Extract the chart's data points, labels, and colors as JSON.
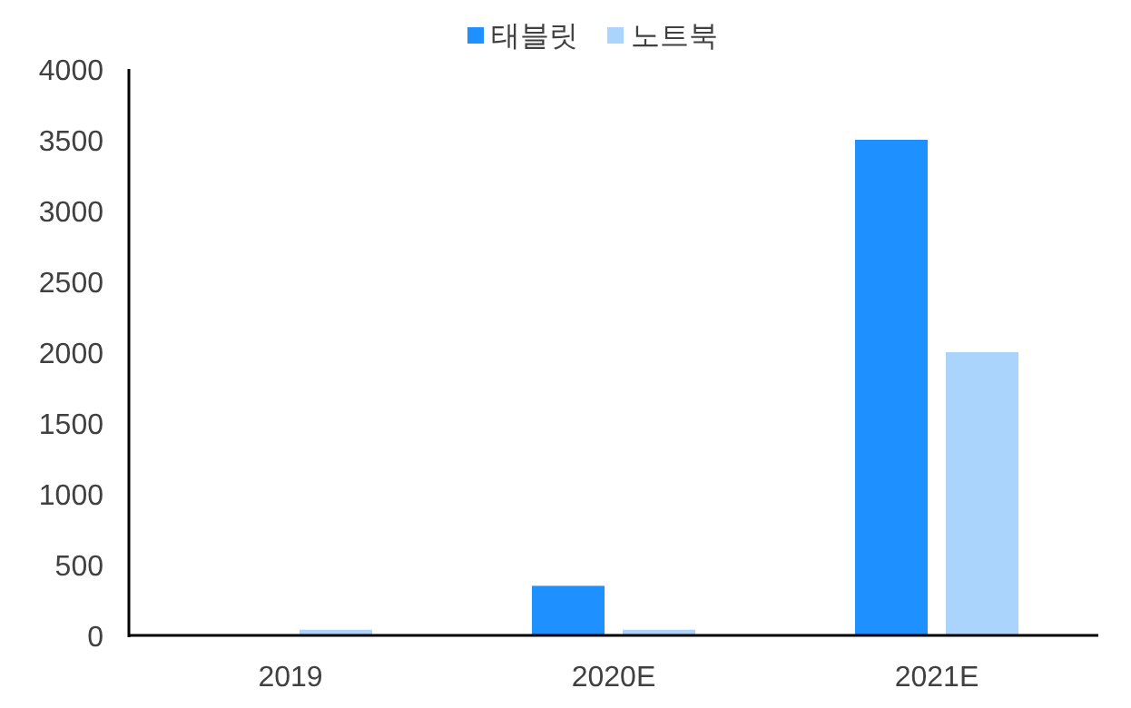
{
  "chart_data": {
    "type": "bar",
    "categories": [
      "2019",
      "2020E",
      "2021E"
    ],
    "series": [
      {
        "name": "태블릿",
        "color": "#1e90ff",
        "values": [
          0,
          350,
          3500
        ]
      },
      {
        "name": "노트북",
        "color": "#aad4fc",
        "values": [
          40,
          40,
          2000
        ]
      }
    ],
    "ylim": [
      0,
      4000
    ],
    "yticks": [
      0,
      500,
      1000,
      1500,
      2000,
      2500,
      3000,
      3500,
      4000
    ],
    "grid": false,
    "legend": "top"
  }
}
